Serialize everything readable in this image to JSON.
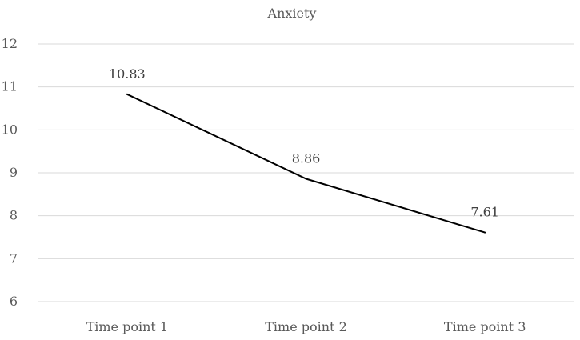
{
  "chart_data": {
    "type": "line",
    "title": "Anxiety",
    "xlabel": "",
    "ylabel": "",
    "categories": [
      "Time point 1",
      "Time point 2",
      "Time point 3"
    ],
    "series": [
      {
        "values": [
          10.83,
          8.86,
          7.61
        ],
        "data_labels": [
          "10.83",
          "8.86",
          "7.61"
        ],
        "color": "#000000"
      }
    ],
    "ylim": [
      6,
      12
    ],
    "yticks": [
      6,
      7,
      8,
      9,
      10,
      11,
      12
    ],
    "ytick_labels": [
      "6",
      "7",
      "8",
      "9",
      "10",
      "11",
      "12"
    ],
    "grid": true,
    "legend": "none",
    "gridline_color": "#d9d9d9",
    "text_color": "#595959"
  }
}
